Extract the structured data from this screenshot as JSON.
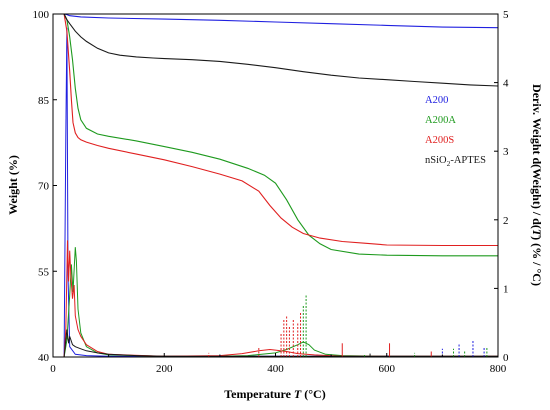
{
  "chart_data": {
    "type": "line",
    "title": "",
    "xlabel": "Temperature T (°C)",
    "xlabel_parts": {
      "pre": "Temperature ",
      "var": "T",
      "post": " (°C)"
    },
    "ylabel": "Weight (%)",
    "y2label": "Deriv. Weight d(Weight) / d(T) (% / °C)",
    "y2label_parts": {
      "pre": "Deriv. Weight d(Weight) / d(",
      "var": "T",
      "post": ") (% / °C)"
    },
    "xlim": [
      0,
      800
    ],
    "ylim": [
      40,
      100
    ],
    "y2lim": [
      0,
      5
    ],
    "x_ticks": [
      "0",
      "200",
      "400",
      "600",
      "800"
    ],
    "y_ticks": [
      "40",
      "55",
      "70",
      "85",
      "100"
    ],
    "y2_ticks": [
      "0",
      "1",
      "2",
      "3",
      "4",
      "5"
    ],
    "legend_position": "right-center",
    "grid": false,
    "series": [
      {
        "name": "A200",
        "color": "#2020e0",
        "x": [
          20,
          25,
          30,
          50,
          100,
          200,
          300,
          400,
          500,
          600,
          700,
          800
        ],
        "y": [
          100,
          99.9,
          99.7,
          99.5,
          99.3,
          99.1,
          98.9,
          98.6,
          98.3,
          98.0,
          97.7,
          97.6
        ]
      },
      {
        "name": "A200A",
        "color": "#1e9a1e",
        "x": [
          20,
          25,
          30,
          35,
          40,
          45,
          50,
          60,
          80,
          100,
          150,
          200,
          250,
          300,
          350,
          380,
          400,
          420,
          440,
          460,
          480,
          500,
          550,
          600,
          700,
          800
        ],
        "y": [
          100,
          99,
          96,
          92,
          87,
          83.5,
          81.5,
          80,
          79,
          78.6,
          77.8,
          76.8,
          75.8,
          74.6,
          73.0,
          71.8,
          70.4,
          67.5,
          64.0,
          61.3,
          59.8,
          58.8,
          58.0,
          57.8,
          57.7,
          57.7
        ]
      },
      {
        "name": "A200S",
        "color": "#e02020",
        "x": [
          20,
          25,
          30,
          33,
          36,
          40,
          45,
          50,
          60,
          80,
          100,
          150,
          200,
          250,
          300,
          340,
          370,
          390,
          410,
          430,
          450,
          480,
          520,
          560,
          600,
          700,
          800
        ],
        "y": [
          100,
          97,
          90,
          85,
          81,
          79.2,
          78.4,
          78.0,
          77.6,
          77.0,
          76.5,
          75.5,
          74.5,
          73.3,
          72.0,
          70.8,
          69.0,
          66.5,
          64.3,
          62.7,
          61.6,
          60.8,
          60.2,
          59.9,
          59.6,
          59.5,
          59.5
        ]
      },
      {
        "name": "nSiO2-APTES",
        "name_parts": {
          "pre": "nSiO",
          "sub": "2",
          "post": "-APTES"
        },
        "color": "#1a1a1a",
        "x": [
          20,
          25,
          30,
          40,
          50,
          60,
          80,
          100,
          120,
          150,
          180,
          200,
          250,
          300,
          350,
          400,
          450,
          500,
          550,
          600,
          650,
          700,
          750,
          800
        ],
        "y": [
          100,
          99,
          98.3,
          97,
          96,
          95.2,
          94.0,
          93.2,
          92.8,
          92.5,
          92.3,
          92.2,
          92.0,
          91.7,
          91.2,
          90.6,
          89.9,
          89.3,
          88.8,
          88.5,
          88.2,
          87.9,
          87.6,
          87.4
        ]
      }
    ],
    "derivative_series": [
      {
        "name": "A200",
        "color": "#2020e0",
        "x": [
          20,
          23,
          25,
          27,
          30,
          40,
          60,
          100,
          200,
          400,
          600,
          800
        ],
        "y": [
          0,
          3.2,
          4.8,
          1.2,
          0.15,
          0.04,
          0.02,
          0.01,
          0.01,
          0.01,
          0.01,
          0.01
        ]
      },
      {
        "name": "A200A",
        "color": "#1e9a1e",
        "x": [
          20,
          25,
          30,
          33,
          36,
          40,
          42,
          45,
          50,
          60,
          80,
          100,
          200,
          300,
          350,
          400,
          420,
          440,
          450,
          460,
          470,
          490,
          520,
          600,
          700,
          800
        ],
        "y": [
          0,
          0.25,
          0.9,
          1.35,
          0.95,
          1.6,
          1.4,
          0.7,
          0.35,
          0.15,
          0.06,
          0.03,
          0.01,
          0.01,
          0.02,
          0.06,
          0.11,
          0.18,
          0.22,
          0.18,
          0.1,
          0.04,
          0.02,
          0.01,
          0.01,
          0.01
        ]
      },
      {
        "name": "A200S",
        "color": "#e02020",
        "x": [
          20,
          23,
          26,
          28,
          30,
          32,
          35,
          38,
          40,
          45,
          50,
          60,
          80,
          100,
          200,
          300,
          340,
          370,
          390,
          400,
          420,
          440,
          470,
          520,
          600,
          700,
          800
        ],
        "y": [
          0,
          0.4,
          1.7,
          1.1,
          1.55,
          1.2,
          0.85,
          1.05,
          0.6,
          0.4,
          0.3,
          0.18,
          0.08,
          0.04,
          0.01,
          0.02,
          0.05,
          0.09,
          0.11,
          0.1,
          0.08,
          0.05,
          0.03,
          0.01,
          0.01,
          0.01,
          0.01
        ]
      },
      {
        "name": "nSiO2-APTES",
        "color": "#1a1a1a",
        "x": [
          20,
          25,
          28,
          30,
          35,
          40,
          50,
          60,
          80,
          100,
          150,
          200,
          300,
          400,
          500,
          600,
          700,
          800
        ],
        "y": [
          0,
          0.4,
          0.2,
          0.3,
          0.18,
          0.15,
          0.12,
          0.09,
          0.06,
          0.04,
          0.02,
          0.01,
          0.01,
          0.01,
          0.01,
          0.01,
          0.01,
          0.01
        ]
      }
    ],
    "spikes": [
      {
        "color": "#e02020",
        "dashed": true,
        "x": [
          280,
          370,
          410,
          415,
          420,
          425,
          432,
          440,
          445
        ],
        "y": [
          0.06,
          0.15,
          0.35,
          0.55,
          0.6,
          0.45,
          0.55,
          0.5,
          0.65
        ]
      },
      {
        "color": "#e02020",
        "dashed": false,
        "x": [
          520,
          605,
          680
        ],
        "y": [
          0.2,
          0.2,
          0.08
        ]
      },
      {
        "color": "#1e9a1e",
        "dashed": true,
        "x": [
          450,
          455,
          560,
          650,
          720,
          740,
          780
        ],
        "y": [
          0.75,
          0.9,
          0.05,
          0.06,
          0.12,
          0.08,
          0.15
        ]
      },
      {
        "color": "#2020e0",
        "dashed": true,
        "x": [
          300,
          500,
          600,
          700,
          730,
          755,
          775
        ],
        "y": [
          0.03,
          0.04,
          0.05,
          0.12,
          0.2,
          0.25,
          0.15
        ]
      },
      {
        "color": "#1a1a1a",
        "dashed": false,
        "x": [
          570
        ],
        "y": [
          0.05
        ]
      }
    ]
  }
}
